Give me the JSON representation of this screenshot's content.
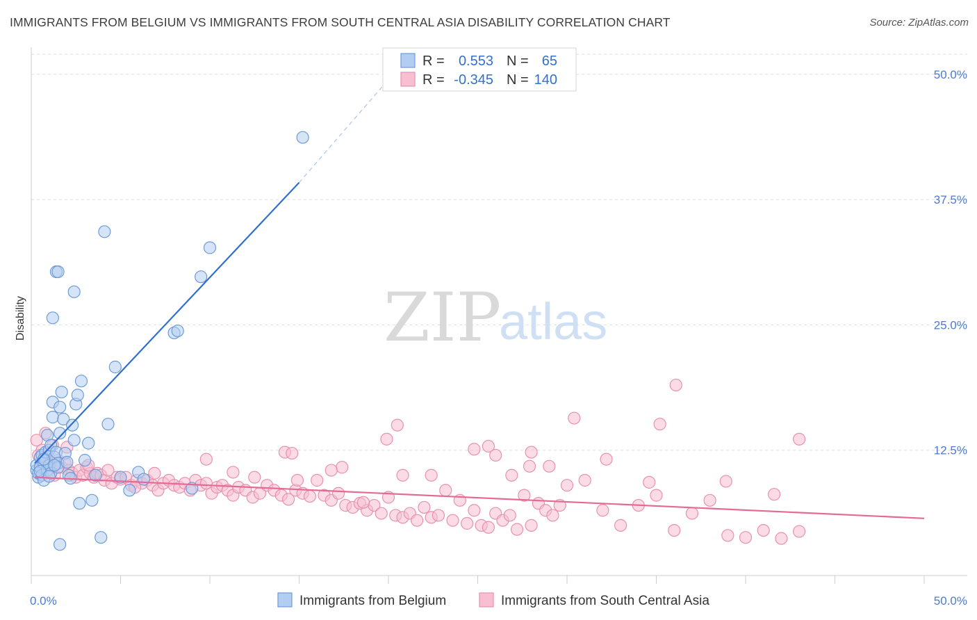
{
  "header": {
    "title": "IMMIGRANTS FROM BELGIUM VS IMMIGRANTS FROM SOUTH CENTRAL ASIA DISABILITY CORRELATION CHART",
    "source": "Source: ZipAtlas.com"
  },
  "watermark": {
    "zip": "ZIP",
    "atlas": "atlas"
  },
  "legend": {
    "rows": [
      {
        "r_label": "R =",
        "r_value": "0.553",
        "n_label": "N =",
        "n_value": "65"
      },
      {
        "r_label": "R =",
        "r_value": "-0.345",
        "n_label": "N =",
        "n_value": "140"
      }
    ]
  },
  "chart_data": {
    "type": "scatter",
    "title": "IMMIGRANTS FROM BELGIUM VS IMMIGRANTS FROM SOUTH CENTRAL ASIA DISABILITY CORRELATION CHART",
    "xlabel": "",
    "ylabel": "Disability",
    "xlim": [
      0,
      50
    ],
    "ylim": [
      0,
      52
    ],
    "x_tick_labels": [
      "0.0%",
      "50.0%"
    ],
    "y_ticks": [
      12.5,
      25.0,
      37.5,
      50.0
    ],
    "y_tick_labels": [
      "12.5%",
      "25.0%",
      "37.5%",
      "50.0%"
    ],
    "grid": true,
    "legend_position": "top-center",
    "colors": {
      "belgium_fill": "#b3cdf0",
      "belgium_stroke": "#6e9bd8",
      "belgium_line": "#2f6fd0",
      "asia_fill": "#f7bfd1",
      "asia_stroke": "#e891ad",
      "asia_line": "#e46a95"
    },
    "series": [
      {
        "name": "Immigrants from Belgium",
        "r": 0.553,
        "n": 65,
        "trend": {
          "x": [
            0.2,
            15.0
          ],
          "y": [
            11.2,
            39.2
          ],
          "dashed_to": [
            20.5,
            50.5
          ]
        },
        "points": [
          [
            0.3,
            10.5
          ],
          [
            0.3,
            11.0
          ],
          [
            0.4,
            9.8
          ],
          [
            0.4,
            10.2
          ],
          [
            0.5,
            11.8
          ],
          [
            0.5,
            10.8
          ],
          [
            0.6,
            12.0
          ],
          [
            0.6,
            10.0
          ],
          [
            0.7,
            11.2
          ],
          [
            0.7,
            9.5
          ],
          [
            0.8,
            11.5
          ],
          [
            0.8,
            12.3
          ],
          [
            0.9,
            14.0
          ],
          [
            0.9,
            10.5
          ],
          [
            1.0,
            11.0
          ],
          [
            1.0,
            12.5
          ],
          [
            1.1,
            13.0
          ],
          [
            1.1,
            10.2
          ],
          [
            1.2,
            15.8
          ],
          [
            1.2,
            17.3
          ],
          [
            1.3,
            11.8
          ],
          [
            1.4,
            12.3
          ],
          [
            1.5,
            11.2
          ],
          [
            1.5,
            10.8
          ],
          [
            1.6,
            14.2
          ],
          [
            1.6,
            16.8
          ],
          [
            1.7,
            18.3
          ],
          [
            1.8,
            15.6
          ],
          [
            1.9,
            12.2
          ],
          [
            2.0,
            11.3
          ],
          [
            2.1,
            10.0
          ],
          [
            2.2,
            9.7
          ],
          [
            2.3,
            15.0
          ],
          [
            2.4,
            13.5
          ],
          [
            2.5,
            17.1
          ],
          [
            2.6,
            18.0
          ],
          [
            2.7,
            7.2
          ],
          [
            2.8,
            19.4
          ],
          [
            3.0,
            11.5
          ],
          [
            3.2,
            13.2
          ],
          [
            3.4,
            7.5
          ],
          [
            3.6,
            10.0
          ],
          [
            3.9,
            3.8
          ],
          [
            4.1,
            34.3
          ],
          [
            4.3,
            15.1
          ],
          [
            4.7,
            20.8
          ],
          [
            5.0,
            9.8
          ],
          [
            5.5,
            8.5
          ],
          [
            6.0,
            10.3
          ],
          [
            6.3,
            9.6
          ],
          [
            8.0,
            24.2
          ],
          [
            8.2,
            24.4
          ],
          [
            9.0,
            8.7
          ],
          [
            9.5,
            29.8
          ],
          [
            10.0,
            32.7
          ],
          [
            15.2,
            43.7
          ],
          [
            1.2,
            25.7
          ],
          [
            1.4,
            30.3
          ],
          [
            1.5,
            30.3
          ],
          [
            2.4,
            28.3
          ],
          [
            1.6,
            3.1
          ],
          [
            0.5,
            10.4
          ],
          [
            0.7,
            11.6
          ],
          [
            1.0,
            9.9
          ],
          [
            1.3,
            11.0
          ]
        ]
      },
      {
        "name": "Immigrants from South Central Asia",
        "r": -0.345,
        "n": 140,
        "trend": {
          "x": [
            0.2,
            50.0
          ],
          "y": [
            9.8,
            5.7
          ]
        },
        "points": [
          [
            0.3,
            13.5
          ],
          [
            0.4,
            12.0
          ],
          [
            0.5,
            11.0
          ],
          [
            0.6,
            12.5
          ],
          [
            0.7,
            10.8
          ],
          [
            0.8,
            11.5
          ],
          [
            0.9,
            12.2
          ],
          [
            1.0,
            10.5
          ],
          [
            1.1,
            11.0
          ],
          [
            1.2,
            13.0
          ],
          [
            1.3,
            10.0
          ],
          [
            1.5,
            11.5
          ],
          [
            1.7,
            10.8
          ],
          [
            1.9,
            11.2
          ],
          [
            2.1,
            10.5
          ],
          [
            2.3,
            10.2
          ],
          [
            2.5,
            9.8
          ],
          [
            2.7,
            10.5
          ],
          [
            2.9,
            10.0
          ],
          [
            3.1,
            10.8
          ],
          [
            3.3,
            10.2
          ],
          [
            3.5,
            9.8
          ],
          [
            3.7,
            10.2
          ],
          [
            3.9,
            10.0
          ],
          [
            4.1,
            9.5
          ],
          [
            4.3,
            10.5
          ],
          [
            4.5,
            9.2
          ],
          [
            4.8,
            9.8
          ],
          [
            5.0,
            9.6
          ],
          [
            5.3,
            9.8
          ],
          [
            5.6,
            9.0
          ],
          [
            5.9,
            9.5
          ],
          [
            6.2,
            9.2
          ],
          [
            6.5,
            9.5
          ],
          [
            6.8,
            9.0
          ],
          [
            7.1,
            8.5
          ],
          [
            7.4,
            9.2
          ],
          [
            7.7,
            9.5
          ],
          [
            8.0,
            9.0
          ],
          [
            8.3,
            8.8
          ],
          [
            8.6,
            9.2
          ],
          [
            8.9,
            8.5
          ],
          [
            9.2,
            9.5
          ],
          [
            9.5,
            9.0
          ],
          [
            9.8,
            9.2
          ],
          [
            10.1,
            8.2
          ],
          [
            10.4,
            8.8
          ],
          [
            10.7,
            9.0
          ],
          [
            11.0,
            8.5
          ],
          [
            11.3,
            8.0
          ],
          [
            11.6,
            8.8
          ],
          [
            12.0,
            8.5
          ],
          [
            12.4,
            7.8
          ],
          [
            12.8,
            8.2
          ],
          [
            13.2,
            9.0
          ],
          [
            13.6,
            8.5
          ],
          [
            14.0,
            8.0
          ],
          [
            14.4,
            7.6
          ],
          [
            14.8,
            8.5
          ],
          [
            15.2,
            8.2
          ],
          [
            15.6,
            7.9
          ],
          [
            16.0,
            9.5
          ],
          [
            16.4,
            8.0
          ],
          [
            16.8,
            7.5
          ],
          [
            17.2,
            8.2
          ],
          [
            17.6,
            7.0
          ],
          [
            18.0,
            6.8
          ],
          [
            18.4,
            7.2
          ],
          [
            18.8,
            6.5
          ],
          [
            19.2,
            7.0
          ],
          [
            19.6,
            6.2
          ],
          [
            20.0,
            7.8
          ],
          [
            20.4,
            6.0
          ],
          [
            20.8,
            5.8
          ],
          [
            21.2,
            6.2
          ],
          [
            21.6,
            5.5
          ],
          [
            22.0,
            6.8
          ],
          [
            22.4,
            5.8
          ],
          [
            22.8,
            6.0
          ],
          [
            23.2,
            8.5
          ],
          [
            23.6,
            5.5
          ],
          [
            24.0,
            7.5
          ],
          [
            24.4,
            5.2
          ],
          [
            24.8,
            6.5
          ],
          [
            25.2,
            5.0
          ],
          [
            25.6,
            4.8
          ],
          [
            26.0,
            6.2
          ],
          [
            26.4,
            5.5
          ],
          [
            26.8,
            6.0
          ],
          [
            27.2,
            4.6
          ],
          [
            27.6,
            8.0
          ],
          [
            28.0,
            5.0
          ],
          [
            28.4,
            7.2
          ],
          [
            28.8,
            6.5
          ],
          [
            29.2,
            6.0
          ],
          [
            29.6,
            7.0
          ],
          [
            30.0,
            9.0
          ],
          [
            31.0,
            9.5
          ],
          [
            32.0,
            6.5
          ],
          [
            33.0,
            5.0
          ],
          [
            34.0,
            7.0
          ],
          [
            35.0,
            8.0
          ],
          [
            36.0,
            4.5
          ],
          [
            37.0,
            6.2
          ],
          [
            38.0,
            7.5
          ],
          [
            39.0,
            4.0
          ],
          [
            40.0,
            3.8
          ],
          [
            41.0,
            4.5
          ],
          [
            42.0,
            3.7
          ],
          [
            43.0,
            4.4
          ],
          [
            14.2,
            12.3
          ],
          [
            14.6,
            12.2
          ],
          [
            17.4,
            10.8
          ],
          [
            19.9,
            13.6
          ],
          [
            20.5,
            15.0
          ],
          [
            24.8,
            12.6
          ],
          [
            26.9,
            10.0
          ],
          [
            27.9,
            10.9
          ],
          [
            28.0,
            12.3
          ],
          [
            29.0,
            10.9
          ],
          [
            30.4,
            15.7
          ],
          [
            32.2,
            11.6
          ],
          [
            34.6,
            9.3
          ],
          [
            35.2,
            15.1
          ],
          [
            36.1,
            19.0
          ],
          [
            38.9,
            9.4
          ],
          [
            41.6,
            8.1
          ],
          [
            43.0,
            13.6
          ],
          [
            9.8,
            11.6
          ],
          [
            11.3,
            10.3
          ],
          [
            12.5,
            9.8
          ],
          [
            14.9,
            9.5
          ],
          [
            16.8,
            10.5
          ],
          [
            18.6,
            7.3
          ],
          [
            20.8,
            10.0
          ],
          [
            25.6,
            12.9
          ],
          [
            26.0,
            12.0
          ],
          [
            22.4,
            10.0
          ],
          [
            2.0,
            12.8
          ],
          [
            0.8,
            14.2
          ],
          [
            3.2,
            11.0
          ],
          [
            5.8,
            8.8
          ],
          [
            6.9,
            10.2
          ]
        ]
      }
    ]
  },
  "bottom_legend": {
    "items": [
      {
        "label": "Immigrants from Belgium"
      },
      {
        "label": "Immigrants from South Central Asia"
      }
    ]
  }
}
